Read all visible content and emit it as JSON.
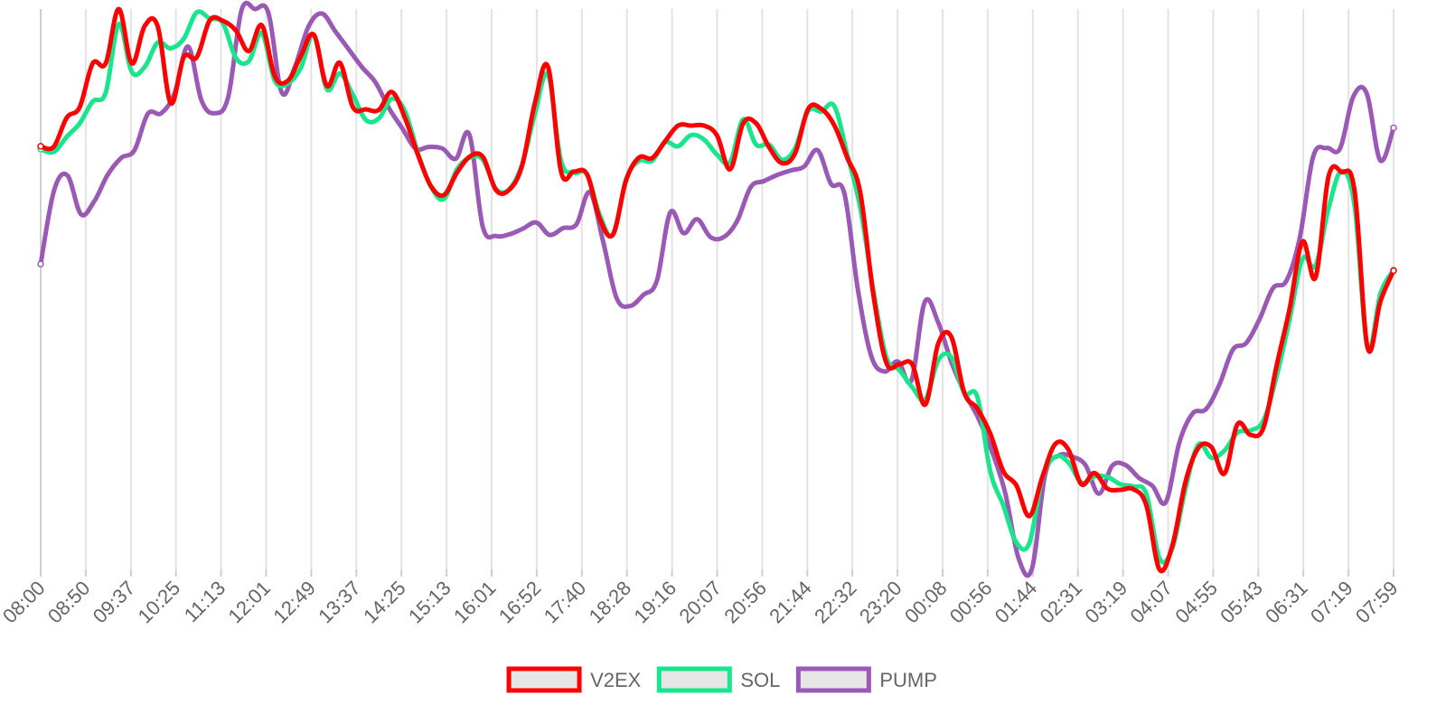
{
  "chart_data": {
    "type": "line",
    "title": "",
    "xlabel": "",
    "ylabel": "",
    "y_axis_labels_shown": false,
    "grid": "vertical",
    "legend_position": "bottom",
    "x_labels": [
      "08:00",
      "08:50",
      "09:37",
      "10:25",
      "11:13",
      "12:01",
      "12:49",
      "13:37",
      "14:25",
      "15:13",
      "16:01",
      "16:52",
      "17:40",
      "18:28",
      "19:16",
      "20:07",
      "20:56",
      "21:44",
      "22:32",
      "23:20",
      "00:08",
      "00:56",
      "01:44",
      "02:31",
      "03:19",
      "04:07",
      "04:55",
      "05:43",
      "06:31",
      "07:19",
      "07:59"
    ],
    "ylim": [
      0,
      100
    ],
    "series": [
      {
        "name": "V2EX",
        "color": "#ff0000",
        "values": [
          75.5,
          75.4,
          80.6,
          82.5,
          90.3,
          90.3,
          100,
          90.3,
          97,
          96.9,
          83.2,
          91.4,
          91.4,
          98,
          97.9,
          96.2,
          92.5,
          97.1,
          88,
          87.2,
          91.6,
          95.4,
          86.3,
          90.4,
          82.5,
          82.1,
          82,
          85.2,
          80.6,
          74,
          68.4,
          66.8,
          70.8,
          73.7,
          73.6,
          67.7,
          67.7,
          72,
          83.3,
          89.7,
          71,
          71,
          70.5,
          62.4,
          59.8,
          69.4,
          73.5,
          73.4,
          76.4,
          79.2,
          79.2,
          79.2,
          77.4,
          71.4,
          79.6,
          79.6,
          75.3,
          72.5,
          74.3,
          82.2,
          82.2,
          79.3,
          73.5,
          67.3,
          49.2,
          36.9,
          36.6,
          36.6,
          29.4,
          40.3,
          41.5,
          31.5,
          28.7,
          24.2,
          17.5,
          15,
          9.5,
          16.5,
          22.4,
          21.4,
          15.2,
          17.2,
          14.4,
          14.2,
          14.3,
          11.4,
          0,
          4.3,
          15.6,
          21.7,
          21.8,
          17.1,
          25.9,
          24,
          25.3,
          36.3,
          46.4,
          58.5,
          52.1,
          70.1,
          70.9,
          67.6,
          39.6,
          47.9,
          53.3
        ]
      },
      {
        "name": "SOL",
        "color": "#19e68c",
        "values": [
          75,
          74.5,
          77.2,
          79.6,
          83.5,
          85.1,
          97.3,
          88.8,
          89.7,
          94,
          93,
          94.7,
          99.4,
          98.3,
          97.5,
          91.3,
          90.7,
          95.7,
          87.2,
          86.7,
          89.5,
          95.4,
          85.7,
          88.5,
          84.7,
          80.2,
          80.5,
          84,
          81.8,
          74.3,
          68.3,
          66.1,
          71.4,
          73.5,
          73.1,
          67.9,
          67.8,
          72.2,
          81.4,
          88.3,
          72.9,
          70.8,
          70.5,
          63.1,
          59.7,
          69.6,
          72.9,
          72.9,
          76.2,
          75.5,
          77.5,
          76.7,
          74,
          72.7,
          80.3,
          75.8,
          75.8,
          73.1,
          75.2,
          81.8,
          81.7,
          82.7,
          74.1,
          64.6,
          50,
          37.9,
          35.6,
          32.5,
          30.3,
          37.3,
          37.9,
          31.5,
          30.8,
          17.5,
          11.4,
          4.8,
          4.7,
          16.3,
          20.1,
          19.1,
          15.5,
          16.6,
          16.5,
          15.2,
          14.8,
          13.4,
          2,
          3.8,
          14.4,
          22.3,
          19.9,
          21.2,
          24.4,
          24.8,
          26.6,
          34.4,
          44.5,
          55.4,
          54.2,
          64.4,
          71.1,
          64.9,
          39.6,
          49.3,
          53.4
        ]
      },
      {
        "name": "PUMP",
        "color": "#9b59b6",
        "values": [
          54.5,
          67.6,
          70.3,
          63.4,
          65.7,
          70.4,
          73.4,
          74.8,
          81.3,
          81.4,
          85,
          93.3,
          83.7,
          81.4,
          84.3,
          99.8,
          100,
          99.3,
          85.1,
          89.8,
          96.9,
          99.2,
          96,
          92.8,
          89.6,
          86.9,
          82.3,
          78.7,
          75.1,
          75.4,
          75.1,
          73.3,
          77.6,
          61.2,
          59.5,
          59.8,
          60.8,
          61.9,
          59.7,
          60.9,
          61.6,
          67.3,
          58.4,
          48.4,
          47,
          49,
          51.5,
          63.7,
          60,
          62.5,
          59.3,
          59.3,
          62.2,
          68.2,
          69.3,
          70.4,
          71.2,
          71.9,
          74.8,
          68.8,
          67.1,
          50.1,
          38.1,
          35.3,
          37.1,
          33.7,
          47.7,
          44.1,
          36.9,
          31.4,
          27,
          21.2,
          13.7,
          2,
          0.1,
          17,
          20.3,
          20.1,
          18.6,
          13.5,
          18.5,
          18.6,
          16.3,
          14.9,
          12,
          22.6,
          27.8,
          28.6,
          33,
          39.2,
          40.4,
          44.7,
          50.2,
          51.5,
          59.2,
          73.7,
          75.2,
          75.1,
          84.4,
          84.9,
          73,
          78.8
        ]
      }
    ]
  }
}
